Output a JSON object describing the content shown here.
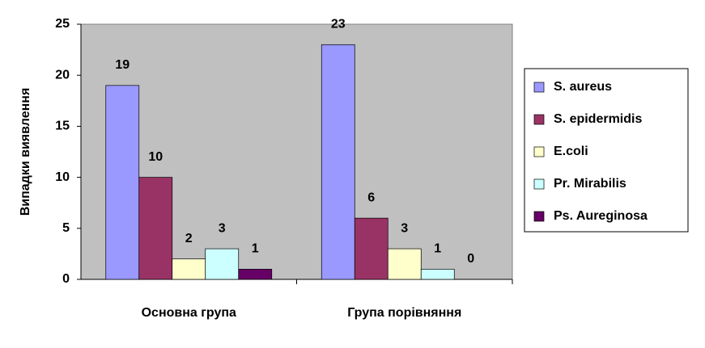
{
  "chart_data": {
    "type": "bar",
    "y_label": "Випадки виявлення",
    "categories": [
      "Основна група",
      "Група порівняння"
    ],
    "series": [
      {
        "name": "S. aureus",
        "color": "#9999ff",
        "values": [
          19,
          23
        ]
      },
      {
        "name": "S. epidermidis",
        "color": "#993366",
        "values": [
          10,
          6
        ]
      },
      {
        "name": "E.coli",
        "color": "#ffffcc",
        "values": [
          2,
          3
        ]
      },
      {
        "name": "Pr. Mirabilis",
        "color": "#ccffff",
        "values": [
          3,
          1
        ]
      },
      {
        "name": "Ps. Aureginosa",
        "color": "#660066",
        "values": [
          1,
          0
        ]
      }
    ],
    "ylim": [
      0,
      25
    ],
    "yticks": [
      0,
      5,
      10,
      15,
      20,
      25
    ],
    "grid": false,
    "legend": "right"
  }
}
